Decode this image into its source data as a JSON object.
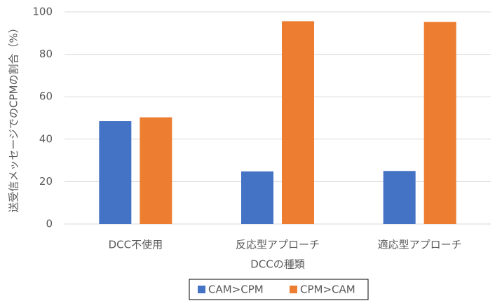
{
  "chart_data": {
    "type": "bar",
    "xlabel": "DCCの種類",
    "ylabel": "送受信メッセージでのCPMの割合（%）",
    "categories": [
      "DCC不使用",
      "反応型アプローチ",
      "適応型アプローチ"
    ],
    "series": [
      {
        "name": "CAM>CPM",
        "color": "#4472c4",
        "values": [
          48.5,
          24.8,
          25.0
        ]
      },
      {
        "name": "CPM>CAM",
        "color": "#ed7d31",
        "values": [
          50.3,
          95.6,
          95.3
        ]
      }
    ],
    "ylim": [
      0,
      100
    ],
    "yticks": [
      0,
      20,
      40,
      60,
      80,
      100
    ],
    "grid": true,
    "legend": "bottom"
  }
}
